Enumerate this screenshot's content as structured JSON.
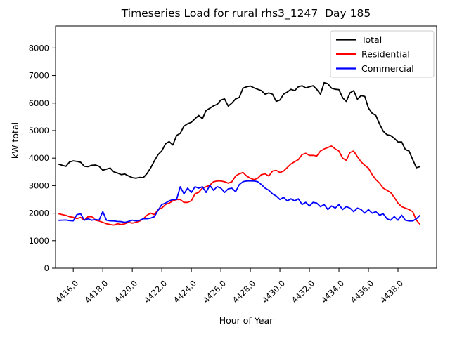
{
  "chart_data": {
    "type": "line",
    "title": "Timeseries Load for rural rhs3_1247  Day 185",
    "xlabel": "Hour of Year",
    "ylabel": "kW total",
    "grid": false,
    "legend_position": "upper right",
    "xlim": [
      4414.8,
      4440.62
    ],
    "ylim": [
      0,
      8800
    ],
    "x_tick_values": [
      4416,
      4418,
      4420,
      4422,
      4424,
      4426,
      4428,
      4430,
      4432,
      4434,
      4436,
      4438
    ],
    "x_tick_labels": [
      "4416.0",
      "4418.0",
      "4420.0",
      "4422.0",
      "4424.0",
      "4426.0",
      "4428.0",
      "4430.0",
      "4432.0",
      "4434.0",
      "4436.0",
      "4438.0"
    ],
    "y_tick_values": [
      0,
      1000,
      2000,
      3000,
      4000,
      5000,
      6000,
      7000,
      8000
    ],
    "y_tick_labels": [
      "0",
      "1000",
      "2000",
      "3000",
      "4000",
      "5000",
      "6000",
      "7000",
      "8000"
    ],
    "x": [
      4415.0,
      4415.25,
      4415.5,
      4415.75,
      4416.0,
      4416.25,
      4416.5,
      4416.75,
      4417.0,
      4417.25,
      4417.5,
      4417.75,
      4418.0,
      4418.25,
      4418.5,
      4418.75,
      4419.0,
      4419.25,
      4419.5,
      4419.75,
      4420.0,
      4420.25,
      4420.5,
      4420.75,
      4421.0,
      4421.25,
      4421.5,
      4421.75,
      4422.0,
      4422.25,
      4422.5,
      4422.75,
      4423.0,
      4423.25,
      4423.5,
      4423.75,
      4424.0,
      4424.25,
      4424.5,
      4424.75,
      4425.0,
      4425.25,
      4425.5,
      4425.75,
      4426.0,
      4426.25,
      4426.5,
      4426.75,
      4427.0,
      4427.25,
      4427.5,
      4427.75,
      4428.0,
      4428.25,
      4428.5,
      4428.75,
      4429.0,
      4429.25,
      4429.5,
      4429.75,
      4430.0,
      4430.25,
      4430.5,
      4430.75,
      4431.0,
      4431.25,
      4431.5,
      4431.75,
      4432.0,
      4432.25,
      4432.5,
      4432.75,
      4433.0,
      4433.25,
      4433.5,
      4433.75,
      4434.0,
      4434.25,
      4434.5,
      4434.75,
      4435.0,
      4435.25,
      4435.5,
      4435.75,
      4436.0,
      4436.25,
      4436.5,
      4436.75,
      4437.0,
      4437.25,
      4437.5,
      4437.75,
      4438.0,
      4438.25,
      4438.5,
      4438.75,
      4439.0,
      4439.25,
      4439.5
    ],
    "series": [
      {
        "name": "Total",
        "color": "#000000",
        "values": [
          3780,
          3740,
          3700,
          3860,
          3900,
          3880,
          3850,
          3700,
          3690,
          3740,
          3750,
          3700,
          3560,
          3600,
          3640,
          3500,
          3460,
          3400,
          3420,
          3350,
          3290,
          3270,
          3300,
          3290,
          3440,
          3650,
          3900,
          4130,
          4260,
          4520,
          4600,
          4480,
          4820,
          4900,
          5160,
          5250,
          5300,
          5430,
          5550,
          5430,
          5730,
          5810,
          5900,
          5950,
          6110,
          6150,
          5890,
          6000,
          6150,
          6200,
          6540,
          6590,
          6620,
          6550,
          6500,
          6450,
          6320,
          6370,
          6320,
          6060,
          6110,
          6320,
          6400,
          6500,
          6450,
          6590,
          6630,
          6550,
          6590,
          6630,
          6500,
          6320,
          6740,
          6700,
          6540,
          6500,
          6490,
          6190,
          6060,
          6370,
          6450,
          6140,
          6270,
          6240,
          5820,
          5630,
          5550,
          5240,
          4980,
          4850,
          4820,
          4720,
          4590,
          4590,
          4310,
          4260,
          3945,
          3650,
          3690
        ]
      },
      {
        "name": "Residential",
        "color": "#ff0000",
        "values": [
          1980,
          1950,
          1920,
          1870,
          1850,
          1800,
          1845,
          1745,
          1870,
          1875,
          1745,
          1715,
          1665,
          1615,
          1590,
          1565,
          1615,
          1590,
          1615,
          1665,
          1640,
          1665,
          1715,
          1795,
          1925,
          2000,
          1950,
          2130,
          2185,
          2315,
          2365,
          2445,
          2495,
          2495,
          2390,
          2390,
          2445,
          2700,
          2755,
          2910,
          2960,
          3015,
          3140,
          3170,
          3170,
          3140,
          3090,
          3140,
          3350,
          3427,
          3478,
          3349,
          3271,
          3220,
          3271,
          3400,
          3427,
          3349,
          3530,
          3556,
          3478,
          3530,
          3660,
          3789,
          3867,
          3945,
          4127,
          4175,
          4100,
          4100,
          4075,
          4256,
          4334,
          4386,
          4437,
          4334,
          4256,
          3997,
          3919,
          4204,
          4256,
          4048,
          3867,
          3737,
          3634,
          3400,
          3220,
          3090,
          2910,
          2831,
          2753,
          2571,
          2365,
          2236,
          2184,
          2132,
          2054,
          1743,
          1590
        ]
      },
      {
        "name": "Commercial",
        "color": "#0000ff",
        "values": [
          1740,
          1745,
          1750,
          1730,
          1720,
          1950,
          1975,
          1745,
          1795,
          1745,
          1770,
          1745,
          2055,
          1745,
          1720,
          1717,
          1700,
          1690,
          1665,
          1700,
          1745,
          1717,
          1743,
          1795,
          1795,
          1820,
          1873,
          2106,
          2314,
          2365,
          2443,
          2495,
          2495,
          2960,
          2701,
          2909,
          2753,
          2960,
          2909,
          2960,
          2753,
          3013,
          2831,
          2961,
          2910,
          2753,
          2883,
          2909,
          2779,
          3039,
          3142,
          3168,
          3173,
          3168,
          3142,
          3039,
          2909,
          2831,
          2701,
          2623,
          2494,
          2571,
          2443,
          2520,
          2443,
          2520,
          2314,
          2392,
          2262,
          2392,
          2365,
          2236,
          2314,
          2132,
          2262,
          2184,
          2314,
          2132,
          2236,
          2184,
          2054,
          2184,
          2132,
          2002,
          2130,
          2000,
          2055,
          1925,
          1975,
          1795,
          1745,
          1875,
          1745,
          1925,
          1745,
          1717,
          1717,
          1795,
          1925
        ]
      }
    ],
    "legend": {
      "frame_color": "#cccccc",
      "background": "#ffffff"
    }
  }
}
